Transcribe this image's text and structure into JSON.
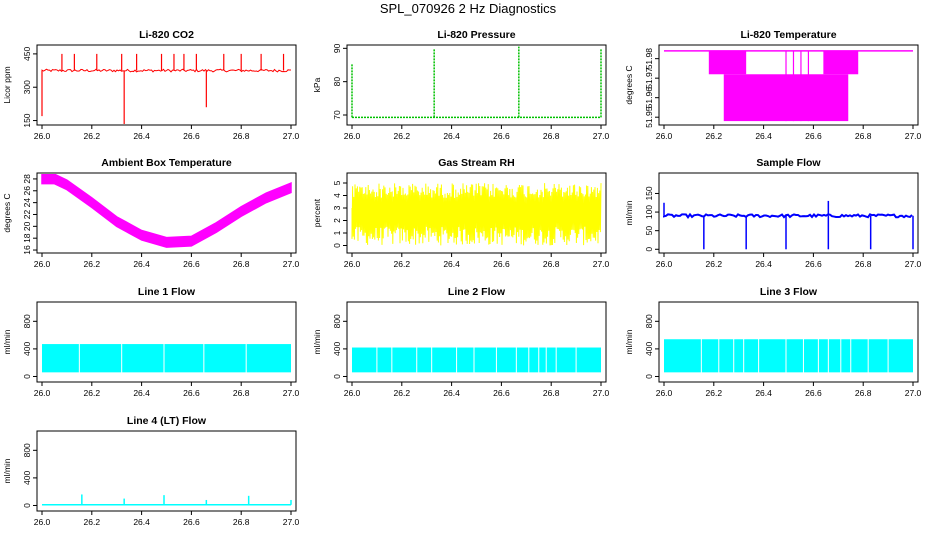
{
  "page": {
    "title": "SPL_070926  2 Hz Diagnostics"
  },
  "chart_data": [
    {
      "type": "line",
      "title": "Li-820 CO2",
      "ylabel": "Licor ppm",
      "color": "#ff0000",
      "xticks": [
        "26.0",
        "26.2",
        "26.4",
        "26.6",
        "26.8",
        "27.0"
      ],
      "xlim": [
        26.0,
        27.0
      ],
      "yticks": [
        "150",
        "300",
        "450"
      ],
      "ylim": [
        130,
        490
      ],
      "series": [
        {
          "baseline": 375,
          "spikes_x": [
            26.08,
            26.13,
            26.22,
            26.32,
            26.38,
            26.48,
            26.53,
            26.57,
            26.62,
            26.73,
            26.8,
            26.88,
            26.97
          ],
          "spike_y": 450,
          "dips": [
            [
              26.0,
              170
            ],
            [
              26.33,
              130
            ],
            [
              26.66,
              210
            ]
          ]
        }
      ]
    },
    {
      "type": "line",
      "title": "Li-820 Pressure",
      "ylabel": "kPa",
      "color": "#00c000",
      "xticks": [
        "26.0",
        "26.2",
        "26.4",
        "26.6",
        "26.8",
        "27.0"
      ],
      "xlim": [
        26.0,
        27.0
      ],
      "yticks": [
        "70",
        "80",
        "90"
      ],
      "ylim": [
        67,
        91
      ],
      "series": [
        {
          "baseline": 69.3,
          "spikes": [
            [
              26.0,
              85.5
            ],
            [
              26.33,
              90
            ],
            [
              26.67,
              90.5
            ],
            [
              27.0,
              90
            ]
          ]
        }
      ]
    },
    {
      "type": "area",
      "title": "Li-820 Temperature",
      "ylabel": "degrees C",
      "color": "#ff00ff",
      "xticks": [
        "26.0",
        "26.2",
        "26.4",
        "26.6",
        "26.8",
        "27.0"
      ],
      "xlim": [
        26.0,
        27.0
      ],
      "yticks": [
        "51.95",
        "51.96",
        "51.97",
        "51.98"
      ],
      "ylim": [
        51.946,
        51.987
      ],
      "series": [
        {
          "upper": 51.984,
          "lower": 51.948
        }
      ]
    },
    {
      "type": "area",
      "title": "Ambient Box Temperature",
      "ylabel": "degrees C",
      "color": "#ff00ff",
      "xticks": [
        "26.0",
        "26.2",
        "26.4",
        "26.6",
        "26.8",
        "27.0"
      ],
      "xlim": [
        26.0,
        27.0
      ],
      "yticks": [
        "16",
        "18",
        "20",
        "22",
        "24",
        "26",
        "28"
      ],
      "ylim": [
        15.5,
        29
      ],
      "series": [
        {
          "x": [
            26.0,
            26.05,
            26.1,
            26.2,
            26.3,
            26.4,
            26.5,
            26.6,
            26.7,
            26.8,
            26.9,
            27.0
          ],
          "y": [
            28.0,
            28.0,
            27.0,
            24.0,
            20.8,
            18.5,
            17.3,
            17.5,
            19.8,
            22.5,
            24.8,
            26.5
          ]
        }
      ]
    },
    {
      "type": "area",
      "title": "Gas Stream RH",
      "ylabel": "percent",
      "color": "#ffff00",
      "xticks": [
        "26.0",
        "26.2",
        "26.4",
        "26.6",
        "26.8",
        "27.0"
      ],
      "xlim": [
        26.0,
        27.0
      ],
      "yticks": [
        "0",
        "1",
        "2",
        "3",
        "4",
        "5"
      ],
      "ylim": [
        -0.6,
        5.8
      ],
      "series": [
        {
          "center": 3.0,
          "low": 0.0,
          "high": 5.0
        }
      ]
    },
    {
      "type": "line",
      "title": "Sample Flow",
      "ylabel": "ml/min",
      "color": "#0000ff",
      "xticks": [
        "26.0",
        "26.2",
        "26.4",
        "26.6",
        "26.8",
        "27.0"
      ],
      "xlim": [
        26.0,
        27.0
      ],
      "yticks": [
        "0",
        "50",
        "100",
        "150"
      ],
      "ylim": [
        -10,
        205
      ],
      "series": [
        {
          "baseline": 90,
          "dips_x": [
            26.16,
            26.33,
            26.49,
            26.66,
            26.83,
            27.0
          ],
          "spike": [
            26.66,
            130
          ],
          "start": [
            26.0,
            125
          ]
        }
      ]
    },
    {
      "type": "area",
      "title": "Line 1 Flow",
      "ylabel": "ml/min",
      "color": "#00ffff",
      "xticks": [
        "26.0",
        "26.2",
        "26.4",
        "26.6",
        "26.8",
        "27.0"
      ],
      "xlim": [
        26.0,
        27.0
      ],
      "yticks": [
        "0",
        "400",
        "800"
      ],
      "ylim": [
        -80,
        1080
      ],
      "series": [
        {
          "low": 60,
          "high": 470,
          "gaps_x": [
            26.15,
            26.32,
            26.49,
            26.65,
            26.82
          ]
        }
      ]
    },
    {
      "type": "area",
      "title": "Line 2 Flow",
      "ylabel": "ml/min",
      "color": "#00ffff",
      "xticks": [
        "26.0",
        "26.2",
        "26.4",
        "26.6",
        "26.8",
        "27.0"
      ],
      "xlim": [
        26.0,
        27.0
      ],
      "yticks": [
        "0",
        "400",
        "800"
      ],
      "ylim": [
        -80,
        1080
      ],
      "series": [
        {
          "low": 60,
          "high": 420,
          "gaps_x": [
            26.1,
            26.16,
            26.26,
            26.32,
            26.42,
            26.49,
            26.58,
            26.66,
            26.71,
            26.75,
            26.78,
            26.82,
            26.9
          ]
        }
      ]
    },
    {
      "type": "area",
      "title": "Line 3 Flow",
      "ylabel": "ml/min",
      "color": "#00ffff",
      "xticks": [
        "26.0",
        "26.2",
        "26.4",
        "26.6",
        "26.8",
        "27.0"
      ],
      "xlim": [
        26.0,
        27.0
      ],
      "yticks": [
        "0",
        "400",
        "800"
      ],
      "ylim": [
        -80,
        1080
      ],
      "series": [
        {
          "low": 60,
          "high": 540,
          "gaps_x": [
            26.15,
            26.22,
            26.28,
            26.32,
            26.38,
            26.49,
            26.56,
            26.62,
            26.66,
            26.71,
            26.75,
            26.82,
            26.9
          ]
        }
      ]
    },
    {
      "type": "line",
      "title": "Line 4 (LT) Flow",
      "ylabel": "ml/min",
      "color": "#00ffff",
      "xticks": [
        "26.0",
        "26.2",
        "26.4",
        "26.6",
        "26.8",
        "27.0"
      ],
      "xlim": [
        26.0,
        27.0
      ],
      "yticks": [
        "0",
        "400",
        "800"
      ],
      "ylim": [
        -80,
        1080
      ],
      "series": [
        {
          "baseline": 10,
          "spikes": [
            [
              26.16,
              160
            ],
            [
              26.33,
              100
            ],
            [
              26.49,
              150
            ],
            [
              26.66,
              80
            ],
            [
              26.83,
              140
            ],
            [
              27.0,
              80
            ]
          ]
        }
      ]
    }
  ]
}
